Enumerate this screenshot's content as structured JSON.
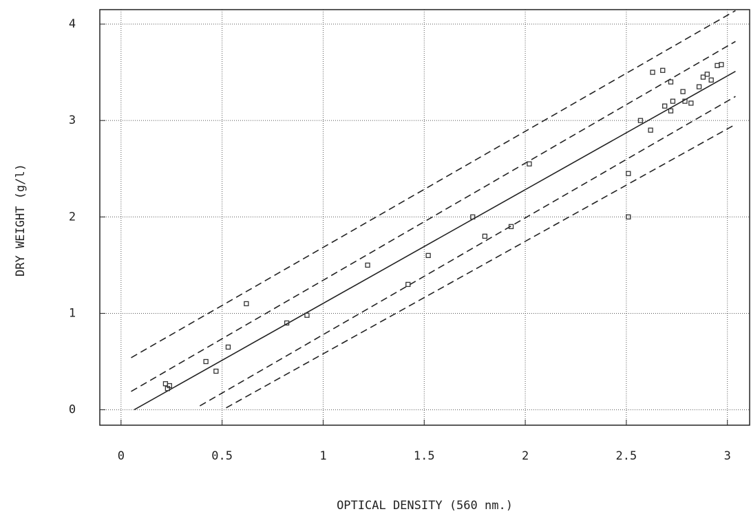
{
  "chart_data": {
    "type": "scatter",
    "x_label": "OPTICAL DENSITY (560 nm.)",
    "y_label": "DRY WEIGHT (g/l)",
    "xlim": [
      -0.105,
      3.11
    ],
    "ylim": [
      -0.16,
      4.15
    ],
    "xticks": [
      0,
      0.5,
      1,
      1.5,
      2,
      2.5,
      3
    ],
    "yticks": [
      0,
      1,
      2,
      3,
      4
    ],
    "grid": true,
    "marker": "square",
    "color": "#333333",
    "x": [
      0.22,
      0.23,
      0.24,
      0.42,
      0.47,
      0.53,
      0.62,
      0.82,
      0.92,
      1.22,
      1.42,
      1.52,
      1.74,
      1.8,
      1.93,
      2.02,
      2.51,
      2.51,
      2.57,
      2.62,
      2.63,
      2.68,
      2.69,
      2.72,
      2.72,
      2.73,
      2.78,
      2.79,
      2.82,
      2.86,
      2.88,
      2.9,
      2.92,
      2.95,
      2.97
    ],
    "y": [
      0.27,
      0.22,
      0.25,
      0.5,
      0.4,
      0.65,
      1.1,
      0.9,
      0.98,
      1.5,
      1.3,
      1.6,
      2.0,
      1.8,
      1.9,
      2.55,
      2.45,
      2.0,
      3.0,
      2.9,
      3.5,
      3.52,
      3.15,
      3.1,
      3.4,
      3.2,
      3.3,
      3.2,
      3.18,
      3.35,
      3.45,
      3.48,
      3.42,
      3.57,
      3.58
    ],
    "lines": [
      {
        "style": "solid",
        "x": [
          0.065,
          3.04
        ],
        "y": [
          0,
          3.51
        ]
      },
      {
        "style": "dashed",
        "x": [
          0.05,
          3.04
        ],
        "y": [
          0.19,
          3.82
        ]
      },
      {
        "style": "dashed",
        "x": [
          0.39,
          3.04
        ],
        "y": [
          0.04,
          3.25
        ]
      },
      {
        "style": "dashed",
        "x": [
          0.05,
          3.04
        ],
        "y": [
          0.54,
          4.14
        ]
      },
      {
        "style": "dashed",
        "x": [
          0.52,
          3.04
        ],
        "y": [
          0.02,
          2.96
        ]
      }
    ]
  }
}
